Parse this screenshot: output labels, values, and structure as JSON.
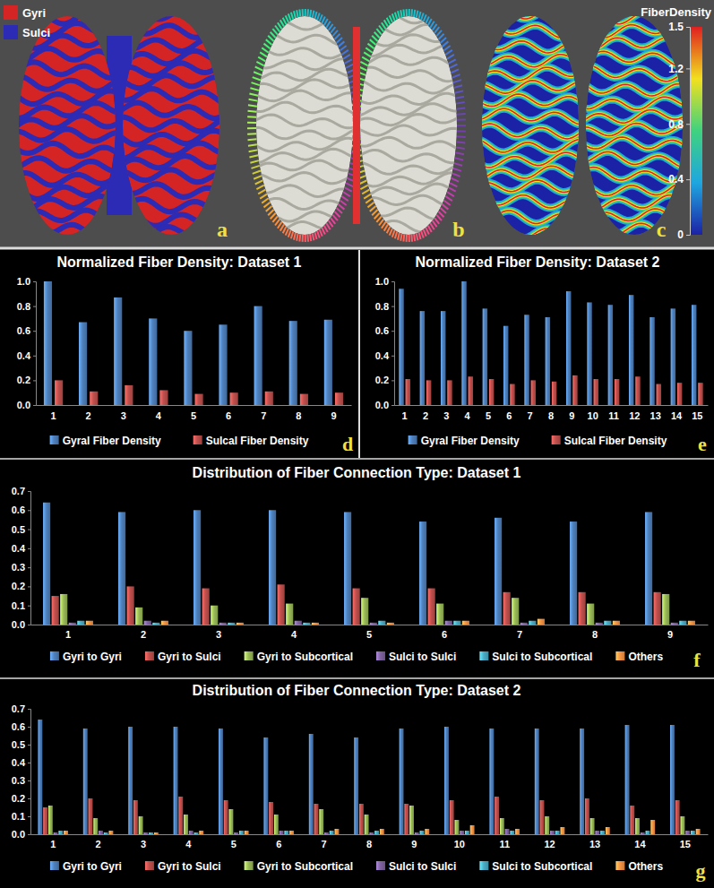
{
  "figure": {
    "panels": [
      {
        "annotation": "a",
        "legend": [
          {
            "name": "Gyri",
            "color": "#d42424"
          },
          {
            "name": "Sulci",
            "color": "#2b2bb5"
          }
        ]
      },
      {
        "annotation": "b"
      },
      {
        "annotation": "c",
        "color_bar": {
          "title": "FiberDensity",
          "range": [
            0,
            1.5
          ],
          "ticks": [
            0,
            0.4,
            0.8,
            1.2,
            1.5
          ],
          "colors": [
            "#1c22a6",
            "#1fa6e0",
            "#3fd27f",
            "#f2e01e",
            "#e01f1f"
          ]
        }
      }
    ]
  },
  "chart_data": [
    {
      "type": "bar",
      "title": "Normalized Fiber Density: Dataset 1",
      "categories": [
        "1",
        "2",
        "3",
        "4",
        "5",
        "6",
        "7",
        "8",
        "9"
      ],
      "series": [
        {
          "name": "Gyral Fiber Density",
          "color": "#4f81bd",
          "values": [
            1.0,
            0.67,
            0.87,
            0.7,
            0.6,
            0.65,
            0.8,
            0.68,
            0.69
          ]
        },
        {
          "name": "Sulcal Fiber Density",
          "color": "#c0504d",
          "values": [
            0.2,
            0.11,
            0.16,
            0.12,
            0.09,
            0.1,
            0.11,
            0.09,
            0.1
          ]
        }
      ],
      "ylim": [
        0,
        1.0
      ],
      "yticks": [
        {
          "value": 0,
          "label": "0.0"
        },
        0.2,
        0.4,
        0.6,
        0.8,
        {
          "value": 1.0,
          "label": "1.0"
        }
      ],
      "grid": false,
      "legend": "bottom",
      "annotations": [
        "d"
      ]
    },
    {
      "type": "bar",
      "title": "Normalized Fiber Density: Dataset 2",
      "categories": [
        "1",
        "2",
        "3",
        "4",
        "5",
        "6",
        "7",
        "8",
        "9",
        "10",
        "11",
        "12",
        "13",
        "14",
        "15"
      ],
      "series": [
        {
          "name": "Gyral Fiber Density",
          "color": "#4f81bd",
          "values": [
            0.94,
            0.76,
            0.76,
            1.0,
            0.78,
            0.64,
            0.73,
            0.71,
            0.92,
            0.83,
            0.81,
            0.89,
            0.71,
            0.78,
            0.81
          ]
        },
        {
          "name": "Sulcal Fiber Density",
          "color": "#c0504d",
          "values": [
            0.21,
            0.2,
            0.2,
            0.23,
            0.21,
            0.17,
            0.2,
            0.19,
            0.24,
            0.21,
            0.21,
            0.23,
            0.17,
            0.18,
            0.18
          ]
        }
      ],
      "ylim": [
        0,
        1.0
      ],
      "yticks": [
        {
          "value": 0,
          "label": "0.0"
        },
        0.2,
        0.4,
        0.6,
        0.8,
        {
          "value": 1.0,
          "label": "1.0"
        }
      ],
      "grid": false,
      "legend": "bottom",
      "annotations": [
        "e"
      ]
    },
    {
      "type": "bar",
      "title": "Distribution of Fiber Connection Type: Dataset 1",
      "categories": [
        "1",
        "2",
        "3",
        "4",
        "5",
        "6",
        "7",
        "8",
        "9"
      ],
      "series": [
        {
          "name": "Gyri to Gyri",
          "color": "#4f81bd",
          "values": [
            0.64,
            0.59,
            0.6,
            0.6,
            0.59,
            0.54,
            0.56,
            0.54,
            0.59
          ]
        },
        {
          "name": "Gyri to Sulci",
          "color": "#c0504d",
          "values": [
            0.15,
            0.2,
            0.19,
            0.21,
            0.19,
            0.19,
            0.17,
            0.17,
            0.17
          ]
        },
        {
          "name": "Gyri to Subcortical",
          "color": "#9bbb59",
          "values": [
            0.16,
            0.09,
            0.1,
            0.11,
            0.14,
            0.11,
            0.14,
            0.11,
            0.16
          ]
        },
        {
          "name": "Sulci to Sulci",
          "color": "#8064a2",
          "values": [
            0.01,
            0.02,
            0.01,
            0.02,
            0.01,
            0.02,
            0.01,
            0.01,
            0.01
          ]
        },
        {
          "name": "Sulci to Subcortical",
          "color": "#4bacc6",
          "values": [
            0.02,
            0.01,
            0.01,
            0.01,
            0.02,
            0.02,
            0.02,
            0.02,
            0.02
          ]
        },
        {
          "name": "Others",
          "color": "#f79646",
          "values": [
            0.02,
            0.02,
            0.01,
            0.01,
            0.01,
            0.02,
            0.03,
            0.02,
            0.02
          ]
        }
      ],
      "ylim": [
        0,
        0.7
      ],
      "yticks": [
        {
          "value": 0,
          "label": "0.0"
        },
        0.1,
        0.2,
        0.3,
        0.4,
        0.5,
        0.6,
        0.7
      ],
      "grid": false,
      "legend": "bottom",
      "annotations": [
        "f"
      ]
    },
    {
      "type": "bar",
      "title": "Distribution of Fiber Connection Type: Dataset 2",
      "categories": [
        "1",
        "2",
        "3",
        "4",
        "5",
        "6",
        "7",
        "8",
        "9",
        "10",
        "11",
        "12",
        "13",
        "14",
        "15"
      ],
      "series": [
        {
          "name": "Gyri to Gyri",
          "color": "#4f81bd",
          "values": [
            0.64,
            0.59,
            0.6,
            0.6,
            0.59,
            0.54,
            0.56,
            0.54,
            0.59,
            0.6,
            0.59,
            0.59,
            0.59,
            0.61,
            0.61
          ]
        },
        {
          "name": "Gyri to Sulci",
          "color": "#c0504d",
          "values": [
            0.15,
            0.2,
            0.19,
            0.21,
            0.19,
            0.18,
            0.17,
            0.17,
            0.17,
            0.19,
            0.21,
            0.19,
            0.2,
            0.16,
            0.19
          ]
        },
        {
          "name": "Gyri to Subcortical",
          "color": "#9bbb59",
          "values": [
            0.16,
            0.09,
            0.1,
            0.11,
            0.14,
            0.11,
            0.14,
            0.11,
            0.16,
            0.08,
            0.09,
            0.1,
            0.09,
            0.09,
            0.1
          ]
        },
        {
          "name": "Sulci to Sulci",
          "color": "#8064a2",
          "values": [
            0.01,
            0.02,
            0.01,
            0.02,
            0.01,
            0.02,
            0.01,
            0.01,
            0.01,
            0.02,
            0.03,
            0.02,
            0.02,
            0.01,
            0.02
          ]
        },
        {
          "name": "Sulci to Subcortical",
          "color": "#4bacc6",
          "values": [
            0.02,
            0.01,
            0.01,
            0.01,
            0.02,
            0.02,
            0.02,
            0.02,
            0.02,
            0.02,
            0.02,
            0.02,
            0.02,
            0.02,
            0.02
          ]
        },
        {
          "name": "Others",
          "color": "#f79646",
          "values": [
            0.02,
            0.02,
            0.01,
            0.02,
            0.02,
            0.02,
            0.03,
            0.03,
            0.03,
            0.05,
            0.03,
            0.04,
            0.04,
            0.08,
            0.03
          ]
        }
      ],
      "ylim": [
        0,
        0.7
      ],
      "yticks": [
        {
          "value": 0,
          "label": "0.0"
        },
        0.1,
        0.2,
        0.3,
        0.4,
        0.5,
        0.6,
        0.7
      ],
      "grid": false,
      "legend": "bottom",
      "annotations": [
        "g"
      ]
    }
  ]
}
